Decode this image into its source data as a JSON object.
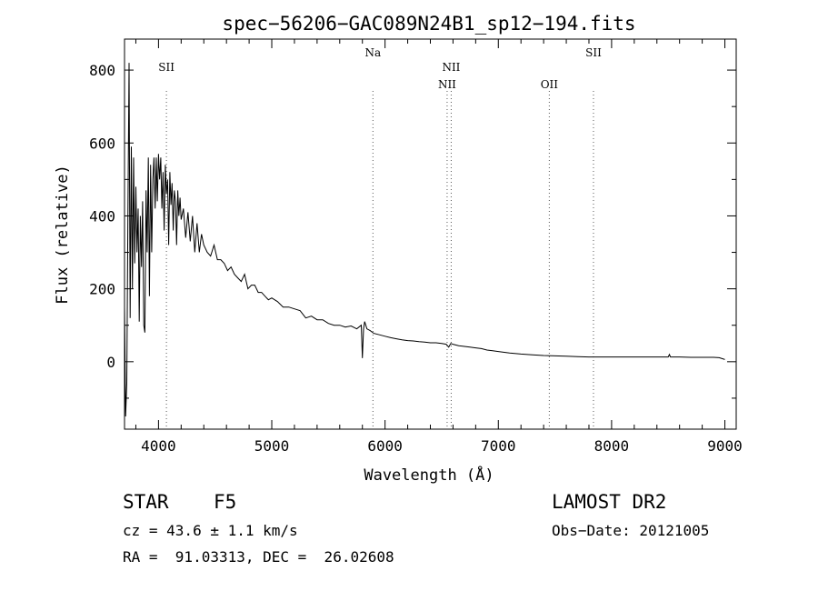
{
  "chart_data": {
    "type": "line",
    "title": "spec−56206−GAC089N24B1_sp12−194.fits",
    "xlabel": "Wavelength (Å)",
    "ylabel": "Flux (relative)",
    "xlim": [
      3700,
      9100
    ],
    "ylim": [
      -185,
      885
    ],
    "xticks": [
      4000,
      5000,
      6000,
      7000,
      8000,
      9000
    ],
    "yticks": [
      0,
      200,
      400,
      600,
      800
    ],
    "grid": false,
    "lines": [
      {
        "name": "SII",
        "x": 4070,
        "label_row": 1
      },
      {
        "name": "Na",
        "x": 5893,
        "label_row": 0
      },
      {
        "name": "NII",
        "x": 6548,
        "label_row": 2
      },
      {
        "name": "NII",
        "x": 6584,
        "label_row": 1
      },
      {
        "name": "OII",
        "x": 7450,
        "label_row": 2
      },
      {
        "name": "SII",
        "x": 7840,
        "label_row": 0
      }
    ],
    "series": [
      {
        "name": "spectrum",
        "x": [
          3700,
          3710,
          3720,
          3730,
          3740,
          3750,
          3760,
          3770,
          3780,
          3790,
          3800,
          3810,
          3820,
          3830,
          3840,
          3850,
          3860,
          3870,
          3880,
          3890,
          3900,
          3910,
          3920,
          3930,
          3940,
          3950,
          3960,
          3970,
          3980,
          3990,
          4000,
          4010,
          4020,
          4030,
          4040,
          4050,
          4060,
          4070,
          4080,
          4090,
          4100,
          4110,
          4120,
          4130,
          4140,
          4150,
          4160,
          4170,
          4180,
          4190,
          4200,
          4220,
          4240,
          4260,
          4280,
          4300,
          4320,
          4340,
          4360,
          4380,
          4400,
          4430,
          4460,
          4490,
          4520,
          4550,
          4580,
          4610,
          4640,
          4670,
          4700,
          4730,
          4760,
          4790,
          4820,
          4850,
          4880,
          4910,
          4940,
          4970,
          5000,
          5050,
          5100,
          5150,
          5200,
          5250,
          5300,
          5350,
          5400,
          5450,
          5500,
          5550,
          5600,
          5650,
          5700,
          5750,
          5790,
          5800,
          5810,
          5820,
          5840,
          5870,
          5900,
          5950,
          6000,
          6050,
          6100,
          6150,
          6200,
          6250,
          6300,
          6350,
          6400,
          6450,
          6500,
          6540,
          6562,
          6580,
          6600,
          6650,
          6700,
          6750,
          6800,
          6850,
          6900,
          6950,
          7000,
          7100,
          7200,
          7300,
          7400,
          7500,
          7600,
          7700,
          7800,
          7900,
          8000,
          8100,
          8200,
          8300,
          8400,
          8500,
          8510,
          8520,
          8600,
          8700,
          8800,
          8900,
          8950,
          9000
        ],
        "y": [
          150,
          -150,
          -60,
          390,
          820,
          120,
          590,
          200,
          560,
          270,
          480,
          300,
          420,
          110,
          400,
          260,
          440,
          100,
          80,
          470,
          300,
          560,
          180,
          540,
          300,
          500,
          560,
          420,
          560,
          440,
          570,
          500,
          560,
          420,
          520,
          360,
          540,
          460,
          500,
          320,
          520,
          430,
          490,
          360,
          470,
          440,
          320,
          470,
          400,
          450,
          390,
          420,
          340,
          410,
          330,
          400,
          300,
          380,
          300,
          350,
          320,
          300,
          290,
          320,
          280,
          280,
          270,
          250,
          260,
          240,
          230,
          220,
          240,
          200,
          210,
          210,
          190,
          190,
          180,
          170,
          175,
          165,
          150,
          150,
          145,
          140,
          120,
          125,
          115,
          115,
          105,
          100,
          100,
          95,
          98,
          90,
          100,
          10,
          90,
          110,
          90,
          85,
          78,
          74,
          70,
          66,
          63,
          60,
          58,
          57,
          55,
          54,
          52,
          52,
          50,
          48,
          40,
          50,
          48,
          44,
          42,
          40,
          38,
          36,
          32,
          30,
          28,
          24,
          21,
          19,
          17,
          16,
          15,
          14,
          13,
          13,
          13,
          13,
          13,
          13,
          13,
          13,
          20,
          13,
          13,
          12,
          12,
          12,
          11,
          6
        ]
      }
    ]
  },
  "footer": {
    "object_class": "STAR",
    "subclass": "F5",
    "redshift": "cz = 43.6 ± 1.1 km/s",
    "coords": "RA =  91.03313, DEC =  26.02608",
    "survey": "LAMOST DR2",
    "obs_date": "Obs−Date: 20121005"
  }
}
